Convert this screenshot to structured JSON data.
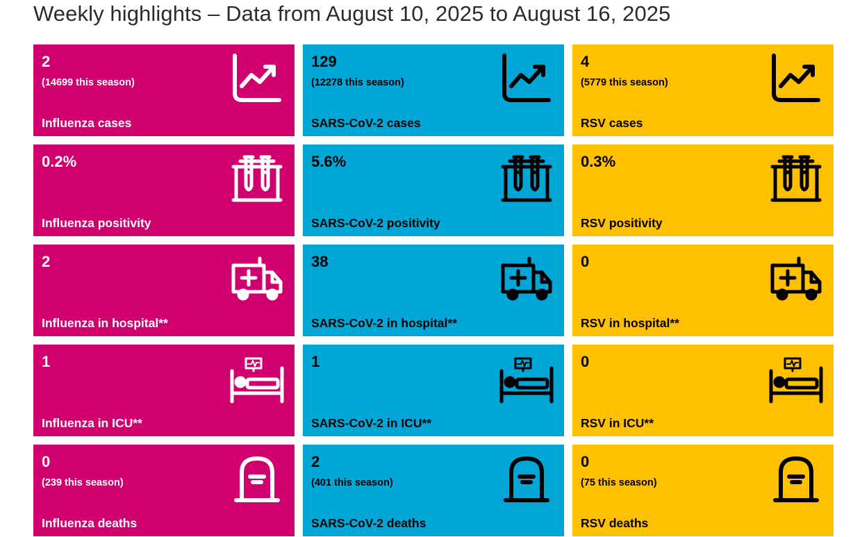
{
  "title": "Weekly highlights – Data from August 10, 2025 to August 16, 2025",
  "colors": {
    "influenza": "#d1006f",
    "sars_cov_2": "#00a6d6",
    "rsv": "#ffc000"
  },
  "rows": [
    {
      "icon": "line-chart-icon",
      "tiles": [
        {
          "value": "2",
          "season": "(14699 this season)",
          "label": "Influenza cases"
        },
        {
          "value": "129",
          "season": "(12278 this season)",
          "label": "SARS-CoV-2 cases"
        },
        {
          "value": "4",
          "season": "(5779 this season)",
          "label": "RSV cases"
        }
      ]
    },
    {
      "icon": "test-tubes-icon",
      "tiles": [
        {
          "value": "0.2%",
          "label": "Influenza positivity"
        },
        {
          "value": "5.6%",
          "label": "SARS-CoV-2 positivity"
        },
        {
          "value": "0.3%",
          "label": "RSV positivity"
        }
      ]
    },
    {
      "icon": "ambulance-icon",
      "tiles": [
        {
          "value": "2",
          "label": "Influenza in hospital**"
        },
        {
          "value": "38",
          "label": "SARS-CoV-2 in hospital**"
        },
        {
          "value": "0",
          "label": "RSV in hospital**"
        }
      ]
    },
    {
      "icon": "hospital-bed-icon",
      "tiles": [
        {
          "value": "1",
          "label": "Influenza in ICU**"
        },
        {
          "value": "1",
          "label": "SARS-CoV-2 in ICU**"
        },
        {
          "value": "0",
          "label": "RSV in ICU**"
        }
      ]
    },
    {
      "icon": "tombstone-icon",
      "tiles": [
        {
          "value": "0",
          "season": "(239 this season)",
          "label": "Influenza deaths"
        },
        {
          "value": "2",
          "season": "(401 this season)",
          "label": "SARS-CoV-2 deaths"
        },
        {
          "value": "0",
          "season": "(75 this season)",
          "label": "RSV deaths"
        }
      ]
    }
  ]
}
